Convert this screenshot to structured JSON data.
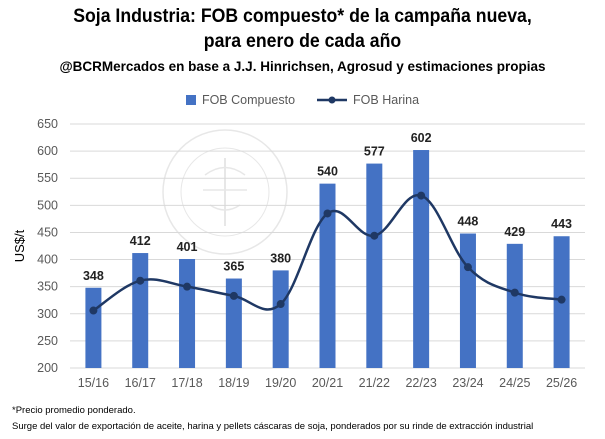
{
  "title_line1": "Soja Industria: FOB compuesto* de la campaña nueva,",
  "title_line2": "para enero de cada año",
  "subtitle": "@BCRMercados en base a J.J. Hinrichsen, Agrosud y estimaciones propias",
  "footnote1": "*Precio promedio  ponderado.",
  "footnote2": "Surge del valor de exportación de aceite, harina y pellets cáscaras de soja, ponderados por su rinde de extracción industrial",
  "colors": {
    "bar": "#4472C4",
    "line": "#1F3864",
    "grid": "#D9D9D9"
  },
  "chart_data": {
    "type": "bar",
    "categories": [
      "15/16",
      "16/17",
      "17/18",
      "18/19",
      "19/20",
      "20/21",
      "21/22",
      "22/23",
      "23/24",
      "24/25",
      "25/26"
    ],
    "ylabel": "US$/t",
    "ylim": [
      200,
      650
    ],
    "yticks": [
      200,
      250,
      300,
      350,
      400,
      450,
      500,
      550,
      600,
      650
    ],
    "grid": true,
    "legend_position": "top",
    "series": [
      {
        "name": "FOB Compuesto",
        "type": "bar",
        "values": [
          348,
          412,
          401,
          365,
          380,
          540,
          577,
          602,
          448,
          429,
          443
        ],
        "data_labels": true
      },
      {
        "name": "FOB Harina",
        "type": "line",
        "smooth": true,
        "markers": true,
        "values": [
          306,
          361,
          350,
          333,
          318,
          485,
          444,
          518,
          386,
          339,
          326
        ],
        "data_labels": false
      }
    ]
  }
}
